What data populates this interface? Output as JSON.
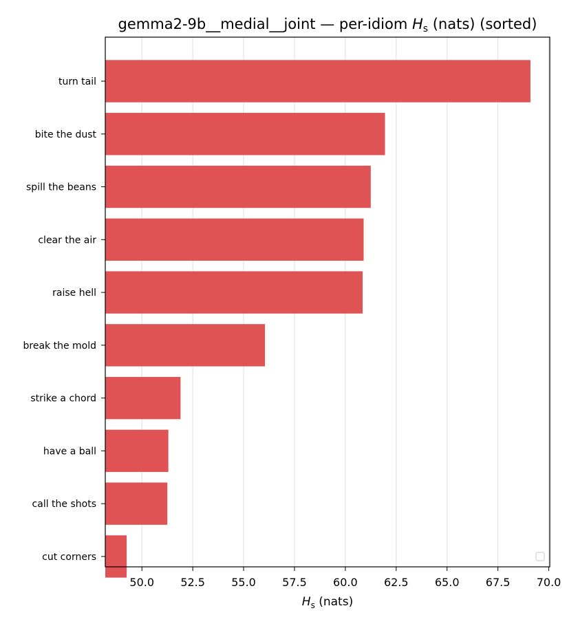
{
  "chart_data": {
    "type": "bar",
    "orientation": "horizontal",
    "title": {
      "prefix": "gemma2-9b__medial__joint — per-idiom ",
      "symbol": "H",
      "subscript": "s",
      "suffix": " (nats) (sorted)"
    },
    "xlabel": {
      "symbol": "H",
      "subscript": "s",
      "suffix": " (nats)"
    },
    "ylabel": "",
    "categories": [
      "turn tail",
      "bite the dust",
      "spill the beans",
      "clear the air",
      "raise hell",
      "break the mold",
      "strike a chord",
      "have a ball",
      "call the shots",
      "cut corners"
    ],
    "values": [
      69.1,
      61.95,
      61.25,
      60.9,
      60.85,
      56.05,
      51.9,
      51.3,
      51.25,
      49.25
    ],
    "xlim": [
      48.2,
      70.05
    ],
    "xticks": [
      "50.0",
      "52.5",
      "55.0",
      "57.5",
      "60.0",
      "62.5",
      "65.0",
      "67.5",
      "70.0"
    ],
    "grid": "vertical",
    "legend": "lower-right",
    "bar_color": "#e05355"
  }
}
